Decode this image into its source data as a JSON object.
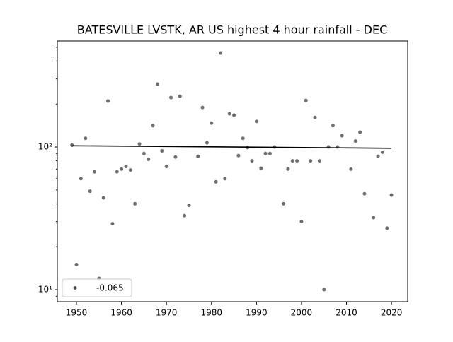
{
  "chart_data": {
    "type": "scatter",
    "title": "BATESVILLE LVSTK, AR US highest 4 hour rainfall - DEC",
    "series": [
      {
        "name": "-0.065",
        "color": "#555555",
        "x": [
          1949,
          1950,
          1951,
          1952,
          1953,
          1954,
          1955,
          1956,
          1957,
          1958,
          1959,
          1960,
          1961,
          1962,
          1963,
          1964,
          1965,
          1966,
          1967,
          1968,
          1969,
          1970,
          1971,
          1972,
          1973,
          1974,
          1975,
          1977,
          1978,
          1979,
          1980,
          1981,
          1982,
          1983,
          1984,
          1985,
          1986,
          1987,
          1988,
          1989,
          1990,
          1991,
          1992,
          1993,
          1994,
          1996,
          1997,
          1998,
          1999,
          2000,
          2001,
          2002,
          2003,
          2004,
          2005,
          2006,
          2007,
          2008,
          2009,
          2011,
          2012,
          2013,
          2014,
          2016,
          2017,
          2018,
          2019,
          2020
        ],
        "values": [
          103,
          15,
          60,
          115,
          49,
          67,
          12,
          44,
          210,
          29,
          67,
          70,
          73,
          69,
          40,
          105,
          90,
          82,
          141,
          276,
          94,
          73,
          222,
          85,
          227,
          33,
          39,
          86,
          189,
          107,
          147,
          57,
          455,
          60,
          171,
          167,
          87,
          115,
          99,
          80,
          151,
          71,
          90,
          90,
          100,
          40,
          70,
          80,
          80,
          30,
          212,
          80,
          161,
          80,
          10,
          100,
          141,
          100,
          120,
          70,
          110,
          127,
          47,
          32,
          86,
          92,
          27,
          46
        ]
      }
    ],
    "trend": {
      "color": "#000000",
      "x": [
        1949,
        2020
      ],
      "values": [
        102,
        98
      ]
    },
    "log_y": true,
    "xlim": [
      1945.75,
      2023.6
    ],
    "ylim": [
      8.24,
      553
    ],
    "xticks": [
      1950,
      1960,
      1970,
      1980,
      1990,
      2000,
      2010,
      2020
    ],
    "yticks": [
      {
        "value": 10,
        "label": "10¹"
      },
      {
        "value": 100,
        "label": "10²"
      }
    ],
    "yminorticks": [
      9,
      20,
      30,
      40,
      50,
      60,
      70,
      80,
      90,
      200,
      300,
      400,
      500
    ],
    "legend": "lower left"
  }
}
